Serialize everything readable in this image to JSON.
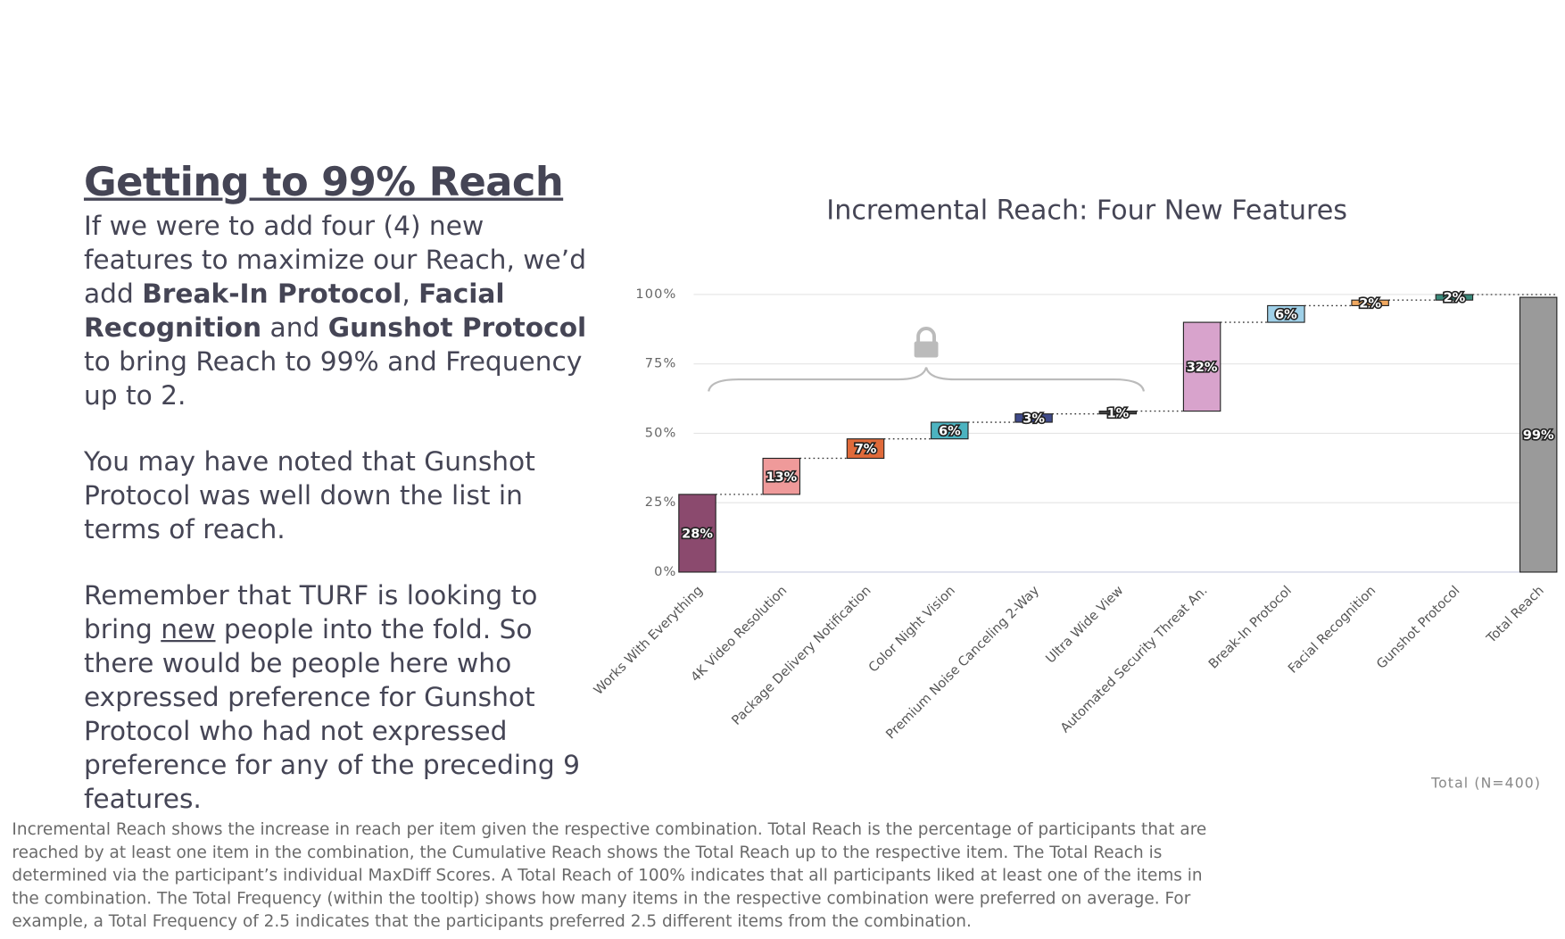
{
  "slide": {
    "title": "Getting to 99% Reach",
    "paragraphs": [
      [
        {
          "text": "If we were to add four (4) new features to maximize our Reach, we’d add "
        },
        {
          "text": "Break-In Protocol",
          "bold": true
        },
        {
          "text": ", "
        },
        {
          "text": "Facial Recognition",
          "bold": true
        },
        {
          "text": " and "
        },
        {
          "text": "Gunshot Protocol",
          "bold": true
        },
        {
          "text": " to bring Reach to 99% and Frequency up to 2."
        }
      ],
      [
        {
          "text": "You may have noted that Gunshot Protocol was well down the list in terms of reach."
        }
      ],
      [
        {
          "text": "Remember that TURF is looking to bring "
        },
        {
          "text": "new",
          "underline": true
        },
        {
          "text": " people into the fold. So there would be people here who expressed preference for Gunshot Protocol who had not expressed preference for any of the preceding 9 features."
        }
      ]
    ],
    "footnote": "Incremental Reach shows the increase in reach per item given the respective combination. Total Reach is the percentage of participants that are reached by at least one item in the combination, the Cumulative Reach shows the Total Reach up to the respective item. The Total Reach is determined via the participant’s individual MaxDiff Scores. A Total Reach of 100% indicates that all participants liked at least one of the items in the combination. The Total Frequency (within the tooltip) shows how many items in the respective combination were preferred on average. For example, a Total Frequency of 2.5 indicates that the participants preferred 2.5 different items from the combination."
  },
  "chart_data": {
    "type": "waterfall",
    "title": "Incremental Reach: Four New Features",
    "note": "Total (N=400)",
    "categories": [
      "Works With Everything",
      "4K Video Resolution",
      "Package Delivery Notification",
      "Color Night Vision",
      "Premium Noise Canceling 2-Way",
      "Ultra Wide View",
      "Automated Security Threat An.",
      "Break-In Protocol",
      "Facial Recognition",
      "Gunshot Protocol",
      "Total Reach"
    ],
    "values": [
      28,
      13,
      7,
      6,
      3,
      1,
      32,
      6,
      2,
      2,
      99
    ],
    "value_labels": [
      "28%",
      "13%",
      "7%",
      "6%",
      "3%",
      "1%",
      "32%",
      "6%",
      "2%",
      "2%",
      "99%"
    ],
    "colors": [
      "#8b4a6e",
      "#ef9a9a",
      "#e06a3a",
      "#4cb3c0",
      "#3f4a8a",
      "#444444",
      "#d8a3cc",
      "#9fd0e8",
      "#f0a860",
      "#3a8a7a",
      "#9a9a9a"
    ],
    "ylim": [
      0,
      100
    ],
    "yticks": [
      {
        "value": 0,
        "label": "0%"
      },
      {
        "value": 25,
        "label": "25%"
      },
      {
        "value": 50,
        "label": "50%"
      },
      {
        "value": 75,
        "label": "75%"
      },
      {
        "value": 100,
        "label": "100%"
      }
    ],
    "grid": true
  }
}
